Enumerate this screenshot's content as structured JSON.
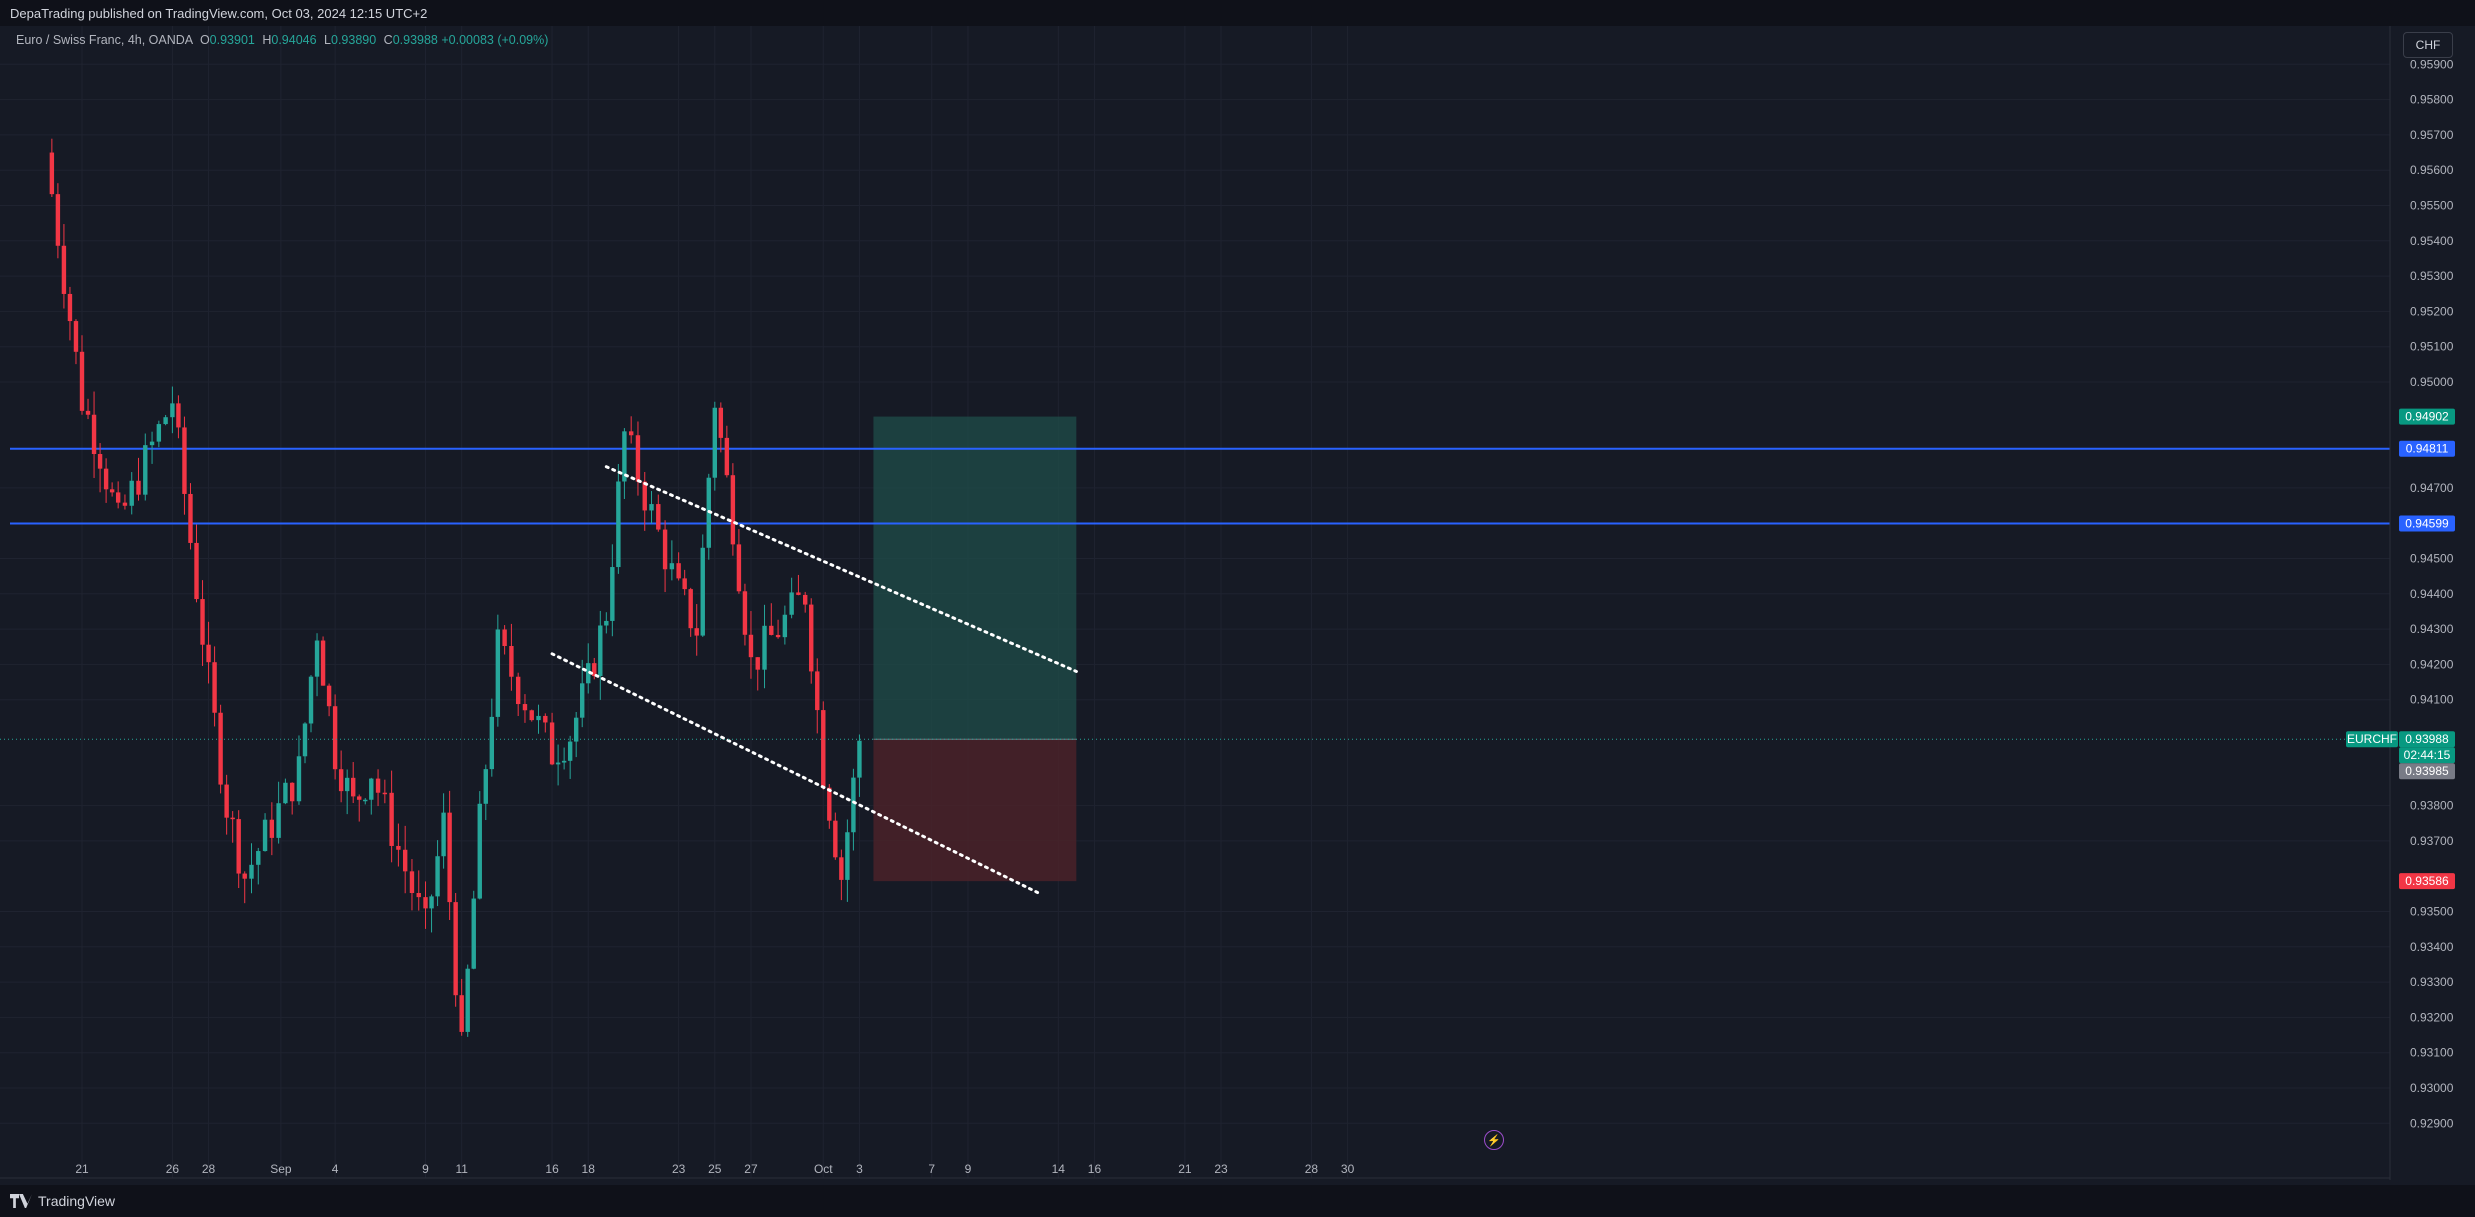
{
  "header": {
    "published_text": "DepaTrading published on TradingView.com, Oct 03, 2024 12:15 UTC+2"
  },
  "symbol": {
    "name": "Euro / Swiss Franc, 4h, OANDA",
    "open_label": "O",
    "open": "0.93901",
    "high_label": "H",
    "high": "0.94046",
    "low_label": "L",
    "low": "0.93890",
    "close_label": "C",
    "close": "0.93988",
    "change": "+0.00083 (+0.09%)"
  },
  "currency_button": "CHF",
  "footer": {
    "brand": "TradingView"
  },
  "colors": {
    "background": "#161a25",
    "up": "#26a69a",
    "down": "#f23645",
    "level_line": "#2962ff",
    "target_zone": "#1f4d4a",
    "stop_zone": "#4a2229",
    "text": "#d1d4dc"
  },
  "chart_data": {
    "type": "candlestick",
    "symbol": "EURCHF",
    "timeframe": "4h",
    "y_axis": {
      "ticks": [
        "0.95900",
        "0.95800",
        "0.95700",
        "0.95600",
        "0.95500",
        "0.95400",
        "0.95300",
        "0.95200",
        "0.95100",
        "0.95000",
        "0.94700",
        "0.94500",
        "0.94400",
        "0.94300",
        "0.94200",
        "0.94100",
        "0.93800",
        "0.93700",
        "0.93500",
        "0.93400",
        "0.93300",
        "0.93200",
        "0.93100",
        "0.93000",
        "0.92900"
      ]
    },
    "x_axis": {
      "labels": [
        "21",
        "26",
        "28",
        "Sep",
        "4",
        "9",
        "11",
        "16",
        "18",
        "23",
        "25",
        "27",
        "Oct",
        "3",
        "7",
        "9",
        "14",
        "16",
        "21",
        "23",
        "28",
        "30"
      ]
    },
    "grid": true,
    "horizontal_levels": [
      {
        "price": 0.94811,
        "label": "0.94811"
      },
      {
        "price": 0.94599,
        "label": "0.94599"
      }
    ],
    "position": {
      "direction": "long",
      "entry": 0.93988,
      "target": 0.94902,
      "target_label": "0.94902",
      "stop": 0.93586,
      "stop_label": "0.93586",
      "start_date": "Oct 3",
      "end_date": "Oct 14"
    },
    "trendlines": [
      {
        "style": "dotted",
        "from": {
          "date": "Sep 19",
          "price": 0.9476
        },
        "to": {
          "date": "Oct 15",
          "price": 0.9418
        }
      },
      {
        "style": "dotted",
        "from": {
          "date": "Sep 16",
          "price": 0.9423
        },
        "to": {
          "date": "Oct 13",
          "price": 0.9355
        }
      }
    ],
    "last_price": {
      "symbol_tag": "EURCHF",
      "price": "0.93988",
      "countdown": "02:44:15",
      "bid": "0.93985"
    },
    "swing_points": [
      {
        "date": "Aug 19",
        "price": 0.9565
      },
      {
        "date": "Aug 20",
        "price": 0.953
      },
      {
        "date": "Aug 21",
        "price": 0.9495
      },
      {
        "date": "Aug 22",
        "price": 0.948
      },
      {
        "date": "Aug 23",
        "price": 0.946
      },
      {
        "date": "Aug 26",
        "price": 0.9495
      },
      {
        "date": "Aug 27",
        "price": 0.9455
      },
      {
        "date": "Aug 28",
        "price": 0.9415
      },
      {
        "date": "Aug 29",
        "price": 0.938
      },
      {
        "date": "Aug 30",
        "price": 0.936
      },
      {
        "date": "Sep 2",
        "price": 0.939
      },
      {
        "date": "Sep 3",
        "price": 0.943
      },
      {
        "date": "Sep 4",
        "price": 0.9395
      },
      {
        "date": "Sep 5",
        "price": 0.938
      },
      {
        "date": "Sep 6",
        "price": 0.939
      },
      {
        "date": "Sep 9",
        "price": 0.9345
      },
      {
        "date": "Sep 10",
        "price": 0.9375
      },
      {
        "date": "Sep 11",
        "price": 0.931
      },
      {
        "date": "Sep 12",
        "price": 0.9375
      },
      {
        "date": "Sep 13",
        "price": 0.9425
      },
      {
        "date": "Sep 16",
        "price": 0.9395
      },
      {
        "date": "Sep 17",
        "price": 0.94
      },
      {
        "date": "Sep 18",
        "price": 0.9415
      },
      {
        "date": "Sep 19",
        "price": 0.9435
      },
      {
        "date": "Sep 20",
        "price": 0.9485
      },
      {
        "date": "Sep 23",
        "price": 0.944
      },
      {
        "date": "Sep 24",
        "price": 0.943
      },
      {
        "date": "Sep 25",
        "price": 0.9495
      },
      {
        "date": "Sep 26",
        "price": 0.946
      },
      {
        "date": "Sep 27",
        "price": 0.942
      },
      {
        "date": "Sep 30",
        "price": 0.944
      },
      {
        "date": "Oct 1",
        "price": 0.939
      },
      {
        "date": "Oct 2",
        "price": 0.936
      },
      {
        "date": "Oct 3",
        "price": 0.93988
      }
    ]
  }
}
